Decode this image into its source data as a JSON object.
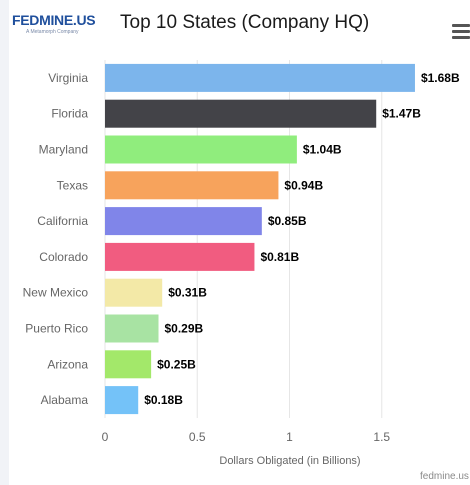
{
  "logo_text": "FEDMINE.US",
  "logo_tagline": "A Metamorph Company",
  "credit": "fedmine.us",
  "icons": {
    "menu": "hamburger-menu-icon"
  },
  "chart_data": {
    "type": "bar",
    "orientation": "horizontal",
    "title": "Top 10 States (Company HQ)",
    "xlabel": "Dollars Obligated (in Billions)",
    "ylabel": "",
    "categories": [
      "Virginia",
      "Florida",
      "Maryland",
      "Texas",
      "California",
      "Colorado",
      "New Mexico",
      "Puerto Rico",
      "Arizona",
      "Alabama"
    ],
    "values": [
      1.68,
      1.47,
      1.04,
      0.94,
      0.85,
      0.81,
      0.31,
      0.29,
      0.25,
      0.18
    ],
    "labels": [
      "$1.68B",
      "$1.47B",
      "$1.04B",
      "$0.94B",
      "$0.85B",
      "$0.81B",
      "$0.31B",
      "$0.29B",
      "$0.25B",
      "$0.18B"
    ],
    "colors": [
      "#7cb5ec",
      "#434348",
      "#90ed7d",
      "#f7a35c",
      "#8085e9",
      "#f15c80",
      "#f3e9a7",
      "#a8e3a3",
      "#a3e86a",
      "#74c2f8"
    ],
    "xlim": [
      0,
      2
    ],
    "xticks": [
      "0",
      "0.5",
      "1",
      "1.5",
      "2"
    ],
    "grid": true,
    "legend": "none"
  }
}
